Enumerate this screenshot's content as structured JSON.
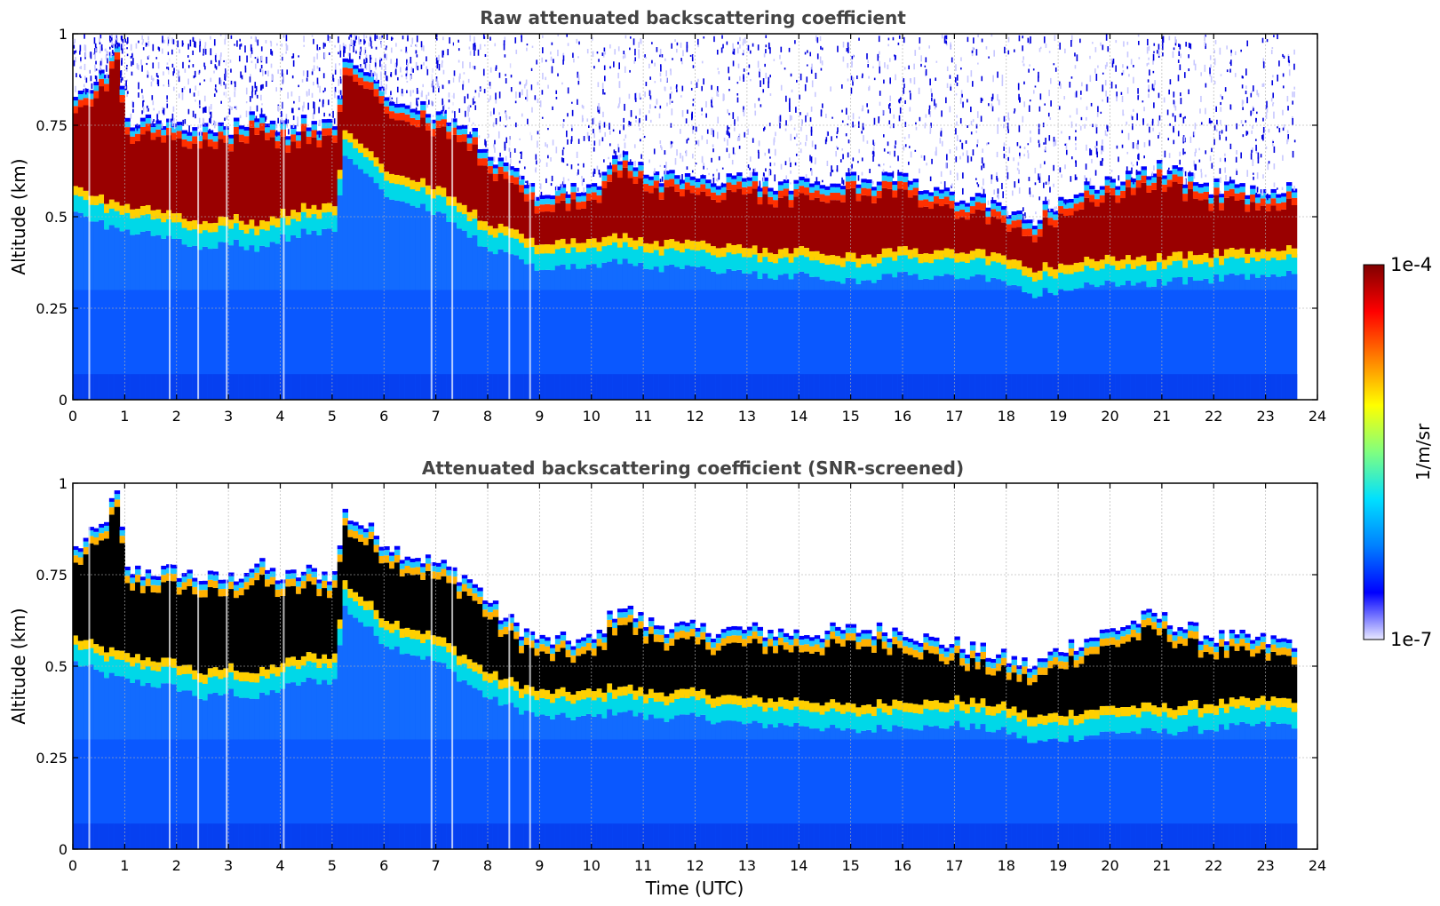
{
  "chart_data": [
    {
      "type": "heatmap",
      "title": "Raw attenuated backscattering coefficient",
      "xlabel": "",
      "ylabel": "Altitude (km)",
      "xlim": [
        0,
        24
      ],
      "ylim": [
        0,
        1
      ],
      "x_ticks": [
        "0",
        "1",
        "2",
        "3",
        "4",
        "5",
        "6",
        "7",
        "8",
        "9",
        "10",
        "11",
        "12",
        "13",
        "14",
        "15",
        "16",
        "17",
        "18",
        "19",
        "20",
        "21",
        "22",
        "23",
        "24"
      ],
      "y_ticks": [
        "0",
        "0.25",
        "0.5",
        "0.75",
        "1"
      ],
      "grid": true,
      "data_end_time": 23.6,
      "layer_top_km": [
        [
          0,
          0.8
        ],
        [
          0.5,
          0.86
        ],
        [
          0.8,
          0.95
        ],
        [
          1.0,
          0.74
        ],
        [
          2.0,
          0.74
        ],
        [
          2.5,
          0.72
        ],
        [
          3.0,
          0.72
        ],
        [
          3.5,
          0.76
        ],
        [
          4.0,
          0.72
        ],
        [
          4.5,
          0.74
        ],
        [
          5.0,
          0.73
        ],
        [
          5.2,
          0.9
        ],
        [
          5.8,
          0.84
        ],
        [
          6.2,
          0.8
        ],
        [
          7.0,
          0.76
        ],
        [
          7.6,
          0.72
        ],
        [
          8.2,
          0.62
        ],
        [
          9.0,
          0.55
        ],
        [
          10.0,
          0.55
        ],
        [
          10.5,
          0.65
        ],
        [
          11.0,
          0.6
        ],
        [
          12.0,
          0.58
        ],
        [
          13.0,
          0.58
        ],
        [
          14.0,
          0.57
        ],
        [
          15.0,
          0.58
        ],
        [
          16.0,
          0.58
        ],
        [
          16.5,
          0.55
        ],
        [
          17.0,
          0.54
        ],
        [
          18.0,
          0.5
        ],
        [
          18.5,
          0.48
        ],
        [
          19.0,
          0.53
        ],
        [
          20.0,
          0.58
        ],
        [
          20.8,
          0.62
        ],
        [
          21.5,
          0.58
        ],
        [
          22.0,
          0.56
        ],
        [
          23.0,
          0.55
        ],
        [
          23.6,
          0.55
        ]
      ],
      "layer_base_km": [
        [
          0,
          0.55
        ],
        [
          0.5,
          0.52
        ],
        [
          1.0,
          0.5
        ],
        [
          2.0,
          0.48
        ],
        [
          2.5,
          0.45
        ],
        [
          3.0,
          0.47
        ],
        [
          3.5,
          0.45
        ],
        [
          4.0,
          0.48
        ],
        [
          4.5,
          0.5
        ],
        [
          5.0,
          0.5
        ],
        [
          5.2,
          0.7
        ],
        [
          6.0,
          0.6
        ],
        [
          7.0,
          0.55
        ],
        [
          8.0,
          0.45
        ],
        [
          9.0,
          0.4
        ],
        [
          10.0,
          0.4
        ],
        [
          10.5,
          0.42
        ],
        [
          11.0,
          0.4
        ],
        [
          12.0,
          0.4
        ],
        [
          13.0,
          0.38
        ],
        [
          14.0,
          0.38
        ],
        [
          15.0,
          0.36
        ],
        [
          16.0,
          0.38
        ],
        [
          16.5,
          0.37
        ],
        [
          17.0,
          0.38
        ],
        [
          18.0,
          0.36
        ],
        [
          18.5,
          0.33
        ],
        [
          19.0,
          0.34
        ],
        [
          20.0,
          0.36
        ],
        [
          21.0,
          0.36
        ],
        [
          22.0,
          0.37
        ],
        [
          23.0,
          0.38
        ],
        [
          23.6,
          0.38
        ]
      ],
      "noise_above_layer": true
    },
    {
      "type": "heatmap",
      "title": "Attenuated backscattering coefficient (SNR-screened)",
      "xlabel": "Time (UTC)",
      "ylabel": "Altitude (km)",
      "xlim": [
        0,
        24
      ],
      "ylim": [
        0,
        1
      ],
      "x_ticks": [
        "0",
        "1",
        "2",
        "3",
        "4",
        "5",
        "6",
        "7",
        "8",
        "9",
        "10",
        "11",
        "12",
        "13",
        "14",
        "15",
        "16",
        "17",
        "18",
        "19",
        "20",
        "21",
        "22",
        "23",
        "24"
      ],
      "y_ticks": [
        "0",
        "0.25",
        "0.5",
        "0.75",
        "1"
      ],
      "grid": true,
      "data_end_time": 23.6,
      "saturated_color": "#000000",
      "noise_above_layer": false
    }
  ],
  "colorbar": {
    "label": "1/m/sr",
    "min_label": "1e-7",
    "max_label": "1e-4",
    "colors": [
      "#e8e8ff",
      "#0000ff",
      "#0080ff",
      "#00e0ff",
      "#80ff80",
      "#ffff00",
      "#ff8000",
      "#ff0000",
      "#800000"
    ]
  }
}
